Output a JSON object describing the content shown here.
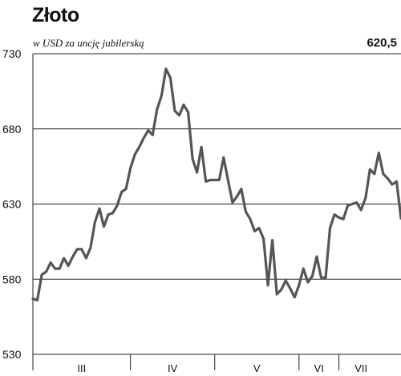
{
  "chart_data": {
    "type": "line",
    "title": "Złoto",
    "subtitle": "w USD za uncję jubilerską",
    "last_value_label": "620,5",
    "ylim": [
      530,
      730
    ],
    "yticks": [
      530,
      580,
      630,
      680,
      730
    ],
    "ytick_labels": [
      "530",
      "580",
      "630",
      "680",
      "730"
    ],
    "grid": "horizontal",
    "line_color": "#555555",
    "months": [
      {
        "label": "III",
        "start": 0,
        "end": 22
      },
      {
        "label": "IV",
        "start": 22,
        "end": 41
      },
      {
        "label": "V",
        "start": 41,
        "end": 60
      },
      {
        "label": "VI",
        "start": 60,
        "end": 69
      },
      {
        "label": "VII",
        "start": 69,
        "end": 79
      }
    ],
    "values": [
      567,
      566,
      583,
      585,
      591,
      587,
      587,
      594,
      589,
      595,
      600,
      600,
      594,
      601,
      618,
      627,
      615,
      623,
      624,
      629,
      638,
      640,
      654,
      663,
      668,
      674,
      679,
      676,
      693,
      702,
      720,
      714,
      692,
      689,
      696,
      691,
      660,
      651,
      668,
      645,
      646,
      646,
      646,
      661,
      646,
      631,
      635,
      640,
      625,
      620,
      612,
      614,
      607,
      576,
      606,
      570,
      573,
      579,
      574,
      568,
      576,
      587,
      578,
      582,
      595,
      581,
      581,
      614,
      623,
      621,
      620,
      629,
      630,
      631,
      626,
      634,
      653,
      650,
      664,
      650,
      647,
      643,
      645,
      620.5
    ]
  }
}
